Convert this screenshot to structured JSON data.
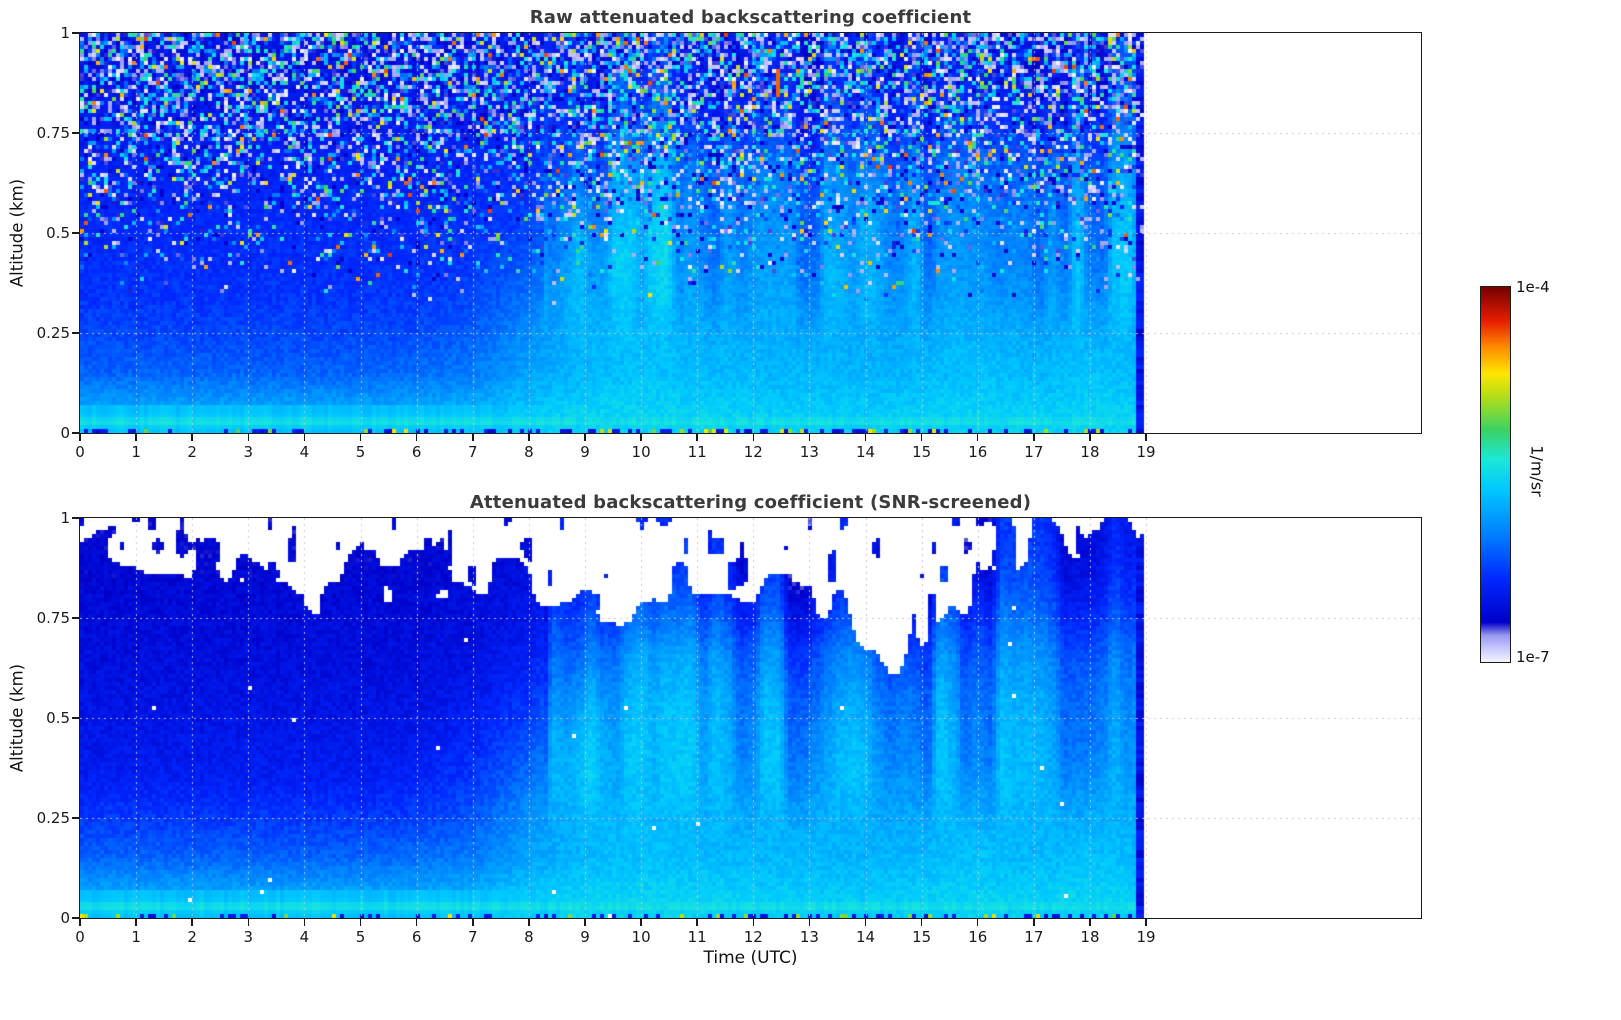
{
  "colorbar": {
    "label": "1/m/sr",
    "top_label": "1e-4",
    "bottom_label": "1e-7",
    "scale": "log",
    "vmin": 1e-07,
    "vmax": 0.0001,
    "stops": [
      {
        "p": 0.0,
        "c": "#f2f2ff"
      },
      {
        "p": 0.035,
        "c": "#c8c8ff"
      },
      {
        "p": 0.07,
        "c": "#9898f0"
      },
      {
        "p": 0.105,
        "c": "#0000c8"
      },
      {
        "p": 0.22,
        "c": "#0028ff"
      },
      {
        "p": 0.34,
        "c": "#0080ff"
      },
      {
        "p": 0.46,
        "c": "#00c8ff"
      },
      {
        "p": 0.54,
        "c": "#1ce8d8"
      },
      {
        "p": 0.62,
        "c": "#3cd264"
      },
      {
        "p": 0.7,
        "c": "#aadc1e"
      },
      {
        "p": 0.77,
        "c": "#ffe600"
      },
      {
        "p": 0.84,
        "c": "#ff8c00"
      },
      {
        "p": 0.91,
        "c": "#e61e00"
      },
      {
        "p": 1.0,
        "c": "#780000"
      }
    ]
  },
  "chart_data": [
    {
      "type": "heatmap",
      "title": "Raw attenuated backscattering coefficient",
      "xlabel": "",
      "ylabel": "Altitude (km)",
      "units": "1/m/sr",
      "value_scale": "log10",
      "xlim": [
        0,
        23.9
      ],
      "ylim": [
        0,
        1
      ],
      "xticks": [
        0,
        1,
        2,
        3,
        4,
        5,
        6,
        7,
        8,
        9,
        10,
        11,
        12,
        13,
        14,
        15,
        16,
        17,
        18,
        19
      ],
      "yticks": [
        0,
        0.25,
        0.5,
        0.75,
        1
      ],
      "ytick_labels": [
        "0",
        "0.25",
        "0.5",
        "0.75",
        "1"
      ],
      "data_end_hour": 18.95,
      "gap_hours": [
        5.07
      ],
      "screened": false,
      "grid_hours": [
        0,
        1,
        2,
        3,
        4,
        5,
        6,
        7,
        8,
        9,
        10,
        11,
        12,
        13,
        14,
        15,
        16,
        17,
        18,
        19
      ],
      "grid_altitudes_km": [
        0.05,
        0.15,
        0.25,
        0.35,
        0.45,
        0.55,
        0.65,
        0.75,
        0.85,
        0.95
      ],
      "grid_log10_values": [
        [
          -5.75,
          -5.75,
          -5.75,
          -5.75,
          -5.75,
          -5.75,
          -5.75,
          -5.7,
          -5.6,
          -5.55,
          -5.55,
          -5.55,
          -5.58,
          -5.6,
          -5.6,
          -5.58,
          -5.55,
          -5.58,
          -5.55,
          -5.58
        ],
        [
          -6.1,
          -6.1,
          -6.1,
          -6.1,
          -6.1,
          -6.1,
          -6.05,
          -6.0,
          -5.8,
          -5.7,
          -5.65,
          -5.68,
          -5.7,
          -5.7,
          -5.72,
          -5.7,
          -5.65,
          -5.7,
          -5.65,
          -5.7
        ],
        [
          -6.22,
          -6.22,
          -6.22,
          -6.22,
          -6.22,
          -6.22,
          -6.2,
          -6.12,
          -5.9,
          -5.7,
          -5.68,
          -5.72,
          -5.75,
          -5.75,
          -5.78,
          -5.75,
          -5.7,
          -5.75,
          -5.7,
          -5.75
        ],
        [
          -6.3,
          -6.3,
          -6.3,
          -6.3,
          -6.3,
          -6.3,
          -6.28,
          -6.22,
          -6.05,
          -5.7,
          -5.7,
          -5.75,
          -5.8,
          -5.8,
          -5.82,
          -5.8,
          -5.75,
          -5.8,
          -5.75,
          -5.8
        ],
        [
          -6.33,
          -6.33,
          -6.33,
          -6.33,
          -6.33,
          -6.33,
          -6.32,
          -6.28,
          -6.18,
          -5.75,
          -5.7,
          -5.8,
          -5.85,
          -5.85,
          -5.9,
          -5.85,
          -5.8,
          -5.85,
          -5.8,
          -5.85
        ],
        [
          -6.36,
          -6.36,
          -6.36,
          -6.36,
          -6.36,
          -6.36,
          -6.35,
          -6.32,
          -6.26,
          -5.9,
          -5.75,
          -5.85,
          -5.9,
          -5.92,
          -5.95,
          -5.9,
          -5.85,
          -5.9,
          -5.85,
          -5.9
        ],
        [
          -6.4,
          -6.4,
          -6.4,
          -6.4,
          -6.4,
          -6.4,
          -6.4,
          -6.36,
          -6.32,
          -6.1,
          -5.85,
          -5.95,
          -6.0,
          -6.02,
          -6.1,
          -6.0,
          -5.95,
          -6.0,
          -5.95,
          -6.0
        ],
        [
          -6.44,
          -6.44,
          -6.44,
          -6.44,
          -6.44,
          -6.44,
          -6.44,
          -6.4,
          -6.36,
          -6.28,
          -6.08,
          -6.15,
          -6.2,
          -6.22,
          -6.3,
          -6.2,
          -6.1,
          -6.18,
          -6.14,
          -6.18
        ],
        [
          -6.48,
          -6.48,
          -6.48,
          -6.48,
          -6.48,
          -6.48,
          -6.48,
          -6.45,
          -6.42,
          -6.38,
          -6.28,
          -6.3,
          -6.34,
          -6.35,
          -6.4,
          -6.34,
          -6.28,
          -6.32,
          -6.3,
          -6.32
        ],
        [
          -6.52,
          -6.52,
          -6.52,
          -6.52,
          -6.52,
          -6.52,
          -6.52,
          -6.5,
          -6.46,
          -6.42,
          -6.38,
          -6.38,
          -6.4,
          -6.4,
          -6.44,
          -6.4,
          -6.38,
          -6.4,
          -6.38,
          -6.4
        ]
      ],
      "mixed_layer_top_km": [
        0.18,
        0.17,
        0.16,
        0.16,
        0.15,
        0.15,
        0.16,
        0.2,
        0.35,
        0.58,
        0.74,
        0.7,
        0.66,
        0.68,
        0.6,
        0.66,
        0.74,
        0.7,
        0.74,
        0.7
      ]
    },
    {
      "type": "heatmap",
      "title": "Attenuated backscattering coefficient (SNR-screened)",
      "xlabel": "Time (UTC)",
      "ylabel": "Altitude (km)",
      "units": "1/m/sr",
      "value_scale": "log10",
      "xlim": [
        0,
        23.9
      ],
      "ylim": [
        0,
        1
      ],
      "xticks": [
        0,
        1,
        2,
        3,
        4,
        5,
        6,
        7,
        8,
        9,
        10,
        11,
        12,
        13,
        14,
        15,
        16,
        17,
        18,
        19
      ],
      "yticks": [
        0,
        0.25,
        0.5,
        0.75,
        1
      ],
      "ytick_labels": [
        "0",
        "0.25",
        "0.5",
        "0.75",
        "1"
      ],
      "data_end_hour": 18.95,
      "gap_hours": [
        5.07
      ],
      "screened": true,
      "grid_hours": [
        0,
        1,
        2,
        3,
        4,
        5,
        6,
        7,
        8,
        9,
        10,
        11,
        12,
        13,
        14,
        15,
        16,
        17,
        18,
        19
      ],
      "grid_altitudes_km": [
        0.05,
        0.15,
        0.25,
        0.35,
        0.45,
        0.55,
        0.65,
        0.75,
        0.85,
        0.95
      ],
      "grid_log10_values": [
        [
          -5.75,
          -5.75,
          -5.75,
          -5.75,
          -5.75,
          -5.75,
          -5.75,
          -5.7,
          -5.6,
          -5.55,
          -5.55,
          -5.55,
          -5.58,
          -5.6,
          -5.6,
          -5.58,
          -5.55,
          -5.58,
          -5.55,
          -5.58
        ],
        [
          -6.1,
          -6.1,
          -6.1,
          -6.1,
          -6.1,
          -6.1,
          -6.05,
          -6.0,
          -5.8,
          -5.7,
          -5.65,
          -5.68,
          -5.7,
          -5.7,
          -5.72,
          -5.7,
          -5.65,
          -5.7,
          -5.65,
          -5.7
        ],
        [
          -6.28,
          -6.28,
          -6.28,
          -6.28,
          -6.28,
          -6.28,
          -6.25,
          -6.15,
          -5.9,
          -5.7,
          -5.68,
          -5.72,
          -5.75,
          -5.75,
          -5.78,
          -5.75,
          -5.7,
          -5.75,
          -5.7,
          -5.75
        ],
        [
          -6.42,
          -6.42,
          -6.42,
          -6.42,
          -6.42,
          -6.42,
          -6.38,
          -6.28,
          -6.05,
          -5.7,
          -5.7,
          -5.75,
          -5.8,
          -5.8,
          -5.82,
          -5.8,
          -5.75,
          -5.8,
          -5.75,
          -5.8
        ],
        [
          -6.48,
          -6.48,
          -6.48,
          -6.48,
          -6.48,
          -6.48,
          -6.46,
          -6.38,
          -6.18,
          -5.75,
          -5.7,
          -5.8,
          -5.85,
          -5.85,
          -5.92,
          -5.85,
          -5.8,
          -5.85,
          -5.8,
          -5.85
        ],
        [
          -6.52,
          -6.52,
          -6.52,
          -6.52,
          -6.52,
          -6.52,
          -6.52,
          -6.46,
          -6.3,
          -5.9,
          -5.75,
          -5.85,
          -5.9,
          -5.95,
          -6.0,
          -5.92,
          -5.85,
          -5.9,
          -5.85,
          -5.9
        ],
        [
          -6.56,
          -6.56,
          -6.56,
          -6.56,
          -6.56,
          -6.56,
          -6.56,
          -6.52,
          -6.42,
          -6.1,
          -5.85,
          -5.95,
          -6.02,
          -6.08,
          -6.15,
          -6.05,
          -5.95,
          -6.0,
          -5.95,
          -6.0
        ],
        [
          -6.58,
          -6.58,
          -6.58,
          -6.58,
          -6.58,
          -6.58,
          -6.58,
          -6.56,
          -6.48,
          -6.32,
          -6.1,
          -6.2,
          -6.25,
          -6.3,
          -6.4,
          -6.28,
          -6.12,
          -6.18,
          -6.14,
          -6.18
        ],
        [
          -6.62,
          -6.62,
          -6.62,
          -6.62,
          -6.62,
          -6.62,
          -6.62,
          -6.6,
          -6.54,
          -6.44,
          -6.34,
          -6.4,
          -6.44,
          -6.5,
          -6.55,
          -6.45,
          -6.34,
          -6.32,
          -6.3,
          -6.32
        ],
        [
          -6.64,
          -6.64,
          -6.64,
          -6.64,
          -6.64,
          -6.64,
          -6.64,
          -6.62,
          -6.58,
          -6.5,
          -6.44,
          -6.46,
          -6.5,
          -6.54,
          -6.58,
          -6.5,
          -6.44,
          -6.4,
          -6.38,
          -6.4
        ]
      ],
      "mixed_layer_top_km": [
        0.18,
        0.17,
        0.16,
        0.16,
        0.15,
        0.15,
        0.16,
        0.2,
        0.35,
        0.58,
        0.74,
        0.7,
        0.66,
        0.68,
        0.6,
        0.66,
        0.74,
        0.7,
        0.74,
        0.7
      ],
      "snr_mask_top_km": [
        0.97,
        0.95,
        0.88,
        0.86,
        0.85,
        0.85,
        0.86,
        0.84,
        0.8,
        0.78,
        0.8,
        0.8,
        0.78,
        0.8,
        0.68,
        0.66,
        0.9,
        0.96,
        0.94,
        0.92
      ]
    }
  ]
}
